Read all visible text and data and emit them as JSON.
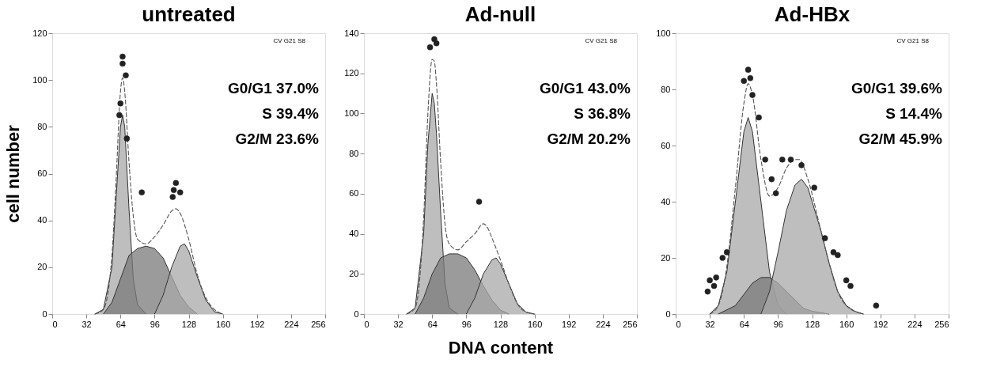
{
  "chart_data": [
    {
      "type": "area",
      "title": "untreated",
      "ylabel": "cell number",
      "xlim": [
        0,
        256
      ],
      "ylim": [
        0,
        120
      ],
      "xticks": [
        0,
        32,
        64,
        96,
        128,
        160,
        192,
        224,
        256
      ],
      "yticks": [
        0,
        20,
        40,
        60,
        80,
        100,
        120
      ],
      "grid": false,
      "annotations": [
        "CV G21 S8",
        "G0/G1 37.0%",
        "S 39.4%",
        "G2/M 23.6%"
      ],
      "series": [
        {
          "type": "area",
          "color": "#a8a8a8",
          "x": [
            40,
            48,
            56,
            60,
            64,
            66,
            68,
            72,
            76,
            80,
            88
          ],
          "values": [
            0,
            2,
            20,
            50,
            80,
            85,
            80,
            45,
            15,
            4,
            0
          ]
        },
        {
          "type": "area",
          "color": "#7a7a7a",
          "x": [
            48,
            56,
            64,
            72,
            80,
            88,
            96,
            104,
            112,
            120,
            128,
            136
          ],
          "values": [
            0,
            5,
            15,
            25,
            28,
            29,
            28,
            24,
            16,
            8,
            3,
            0
          ]
        },
        {
          "type": "area",
          "color": "#a8a8a8",
          "x": [
            96,
            104,
            112,
            120,
            124,
            128,
            136,
            144,
            152,
            160
          ],
          "values": [
            0,
            8,
            20,
            29,
            30,
            27,
            16,
            6,
            1,
            0
          ]
        },
        {
          "type": "line",
          "color": "#555555",
          "line_style": "dashed",
          "x": [
            40,
            48,
            56,
            60,
            64,
            66,
            68,
            72,
            76,
            80,
            88,
            96,
            104,
            112,
            116,
            120,
            128,
            136,
            144,
            152,
            160
          ],
          "values": [
            0,
            2,
            25,
            58,
            95,
            101,
            95,
            65,
            42,
            32,
            30,
            33,
            38,
            44,
            45,
            43,
            32,
            17,
            7,
            2,
            0
          ]
        },
        {
          "type": "scatter",
          "marker": "circle",
          "color": "#222222",
          "x": [
            63,
            64,
            66,
            66,
            69,
            70,
            84,
            113,
            114,
            116,
            120
          ],
          "values": [
            85,
            90,
            110,
            107,
            102,
            75,
            52,
            50,
            53,
            56,
            52
          ]
        }
      ]
    },
    {
      "type": "area",
      "title": "Ad-null",
      "xlabel": "DNA content",
      "xlim": [
        0,
        256
      ],
      "ylim": [
        0,
        140
      ],
      "xticks": [
        0,
        32,
        64,
        96,
        128,
        160,
        192,
        224,
        256
      ],
      "yticks": [
        0,
        20,
        40,
        60,
        80,
        100,
        120,
        140
      ],
      "grid": false,
      "annotations": [
        "CV G21 S8",
        "G0/G1 43.0%",
        "S 36.8%",
        "G2/M 20.2%"
      ],
      "series": [
        {
          "type": "area",
          "color": "#a8a8a8",
          "x": [
            40,
            48,
            56,
            60,
            64,
            66,
            68,
            72,
            76,
            80,
            88
          ],
          "values": [
            0,
            3,
            40,
            85,
            110,
            105,
            90,
            50,
            15,
            3,
            0
          ]
        },
        {
          "type": "area",
          "color": "#7a7a7a",
          "x": [
            48,
            56,
            64,
            72,
            80,
            88,
            96,
            104,
            112,
            120,
            128,
            136
          ],
          "values": [
            0,
            8,
            20,
            28,
            30,
            30,
            28,
            22,
            14,
            7,
            2,
            0
          ]
        },
        {
          "type": "area",
          "color": "#a8a8a8",
          "x": [
            96,
            104,
            112,
            120,
            124,
            128,
            136,
            144,
            152,
            160
          ],
          "values": [
            0,
            8,
            20,
            27,
            28,
            25,
            15,
            5,
            1,
            0
          ]
        },
        {
          "type": "line",
          "color": "#555555",
          "line_style": "dashed",
          "x": [
            40,
            48,
            56,
            60,
            64,
            66,
            68,
            72,
            76,
            80,
            88,
            96,
            104,
            112,
            116,
            120,
            128,
            136,
            144,
            152,
            160
          ],
          "values": [
            0,
            3,
            48,
            100,
            127,
            126,
            115,
            75,
            45,
            35,
            32,
            36,
            40,
            45,
            43,
            38,
            27,
            15,
            5,
            1,
            0
          ]
        },
        {
          "type": "scatter",
          "marker": "circle",
          "color": "#222222",
          "x": [
            62,
            66,
            68,
            108
          ],
          "values": [
            133,
            137,
            135,
            56
          ]
        }
      ]
    },
    {
      "type": "area",
      "title": "Ad-HBx",
      "xlim": [
        0,
        256
      ],
      "ylim": [
        0,
        100
      ],
      "xticks": [
        0,
        32,
        64,
        96,
        128,
        160,
        192,
        224,
        256
      ],
      "yticks": [
        0,
        20,
        40,
        60,
        80,
        100
      ],
      "grid": false,
      "annotations": [
        "CV G21 S8",
        "G0/G1 39.6%",
        "S 14.4%",
        "G2/M 45.9%"
      ],
      "series": [
        {
          "type": "area",
          "color": "#a8a8a8",
          "x": [
            32,
            40,
            48,
            56,
            64,
            68,
            72,
            80,
            88,
            96,
            104
          ],
          "values": [
            0,
            3,
            15,
            40,
            65,
            70,
            65,
            40,
            15,
            3,
            0
          ]
        },
        {
          "type": "area",
          "color": "#7a7a7a",
          "x": [
            40,
            56,
            64,
            72,
            80,
            88,
            96,
            104,
            112,
            120,
            128,
            144
          ],
          "values": [
            0,
            3,
            7,
            11,
            13,
            13,
            11,
            8,
            5,
            2,
            1,
            0
          ]
        },
        {
          "type": "area",
          "color": "#a8a8a8",
          "x": [
            80,
            88,
            96,
            104,
            112,
            118,
            124,
            136,
            144,
            152,
            160,
            168,
            176
          ],
          "values": [
            0,
            8,
            22,
            37,
            46,
            48,
            45,
            30,
            18,
            8,
            3,
            1,
            0
          ]
        },
        {
          "type": "line",
          "color": "#555555",
          "line_style": "dashed",
          "x": [
            32,
            40,
            48,
            56,
            64,
            68,
            72,
            80,
            88,
            96,
            104,
            112,
            116,
            124,
            136,
            144,
            152,
            160,
            176
          ],
          "values": [
            0,
            3,
            17,
            45,
            75,
            82,
            78,
            55,
            42,
            45,
            52,
            55,
            55,
            48,
            30,
            18,
            8,
            3,
            0
          ]
        },
        {
          "type": "scatter",
          "marker": "circle",
          "color": "#222222",
          "x": [
            30,
            32,
            36,
            38,
            44,
            48,
            64,
            68,
            70,
            72,
            78,
            84,
            90,
            94,
            100,
            108,
            118,
            130,
            140,
            148,
            152,
            160,
            164,
            188
          ],
          "values": [
            8,
            12,
            10,
            13,
            20,
            22,
            83,
            87,
            84,
            78,
            70,
            55,
            48,
            43,
            55,
            55,
            53,
            45,
            27,
            22,
            21,
            12,
            10,
            3
          ]
        }
      ]
    }
  ]
}
